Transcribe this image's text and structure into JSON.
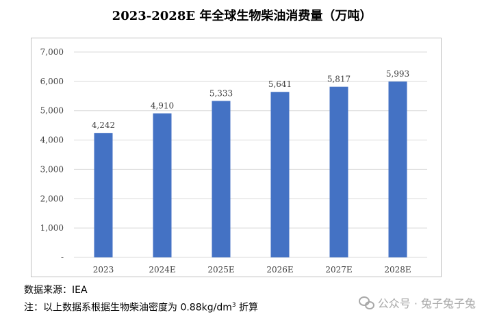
{
  "title": "2023-2028E 年全球生物柴油消费量（万吨）",
  "chart_data": {
    "type": "bar",
    "categories": [
      "2023",
      "2024E",
      "2025E",
      "2026E",
      "2027E",
      "2028E"
    ],
    "values": [
      4242,
      4910,
      5333,
      5641,
      5817,
      5993
    ],
    "value_labels": [
      "4,242",
      "4,910",
      "5,333",
      "5,641",
      "5,817",
      "5,993"
    ],
    "yticks": [
      "-",
      "1,000",
      "2,000",
      "3,000",
      "4,000",
      "5,000",
      "6,000",
      "7,000"
    ],
    "ylim": [
      0,
      7000
    ],
    "grid": true,
    "legend": "none",
    "bar_color": "#4472c4"
  },
  "notes": {
    "source": "数据来源：IEA",
    "note_prefix": "注：以上数据系根据生物柴油密度为 0.88kg/dm",
    "note_sup": "3",
    "note_suffix": " 折算"
  },
  "watermark": {
    "text": "公众号 · 兔子兔子兔",
    "icon": "wechat-icon"
  }
}
